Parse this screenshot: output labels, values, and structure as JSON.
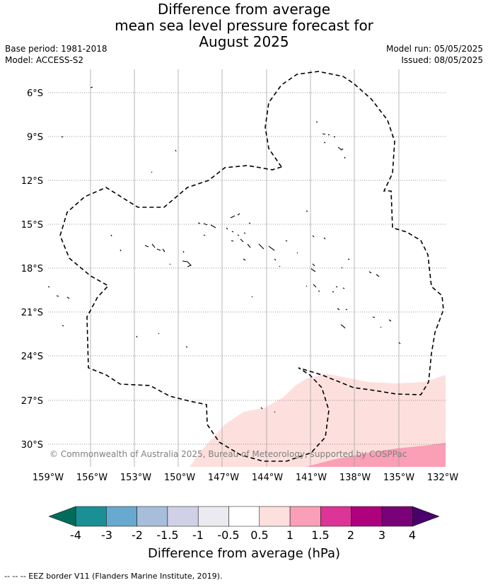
{
  "header": {
    "title_line1": "Difference from average",
    "title_line2": "mean sea level pressure forecast for",
    "title_line3": "August 2025",
    "base_period": "Base period: 1981-2018",
    "model": "Model: ACCESS-S2",
    "model_run": "Model run: 05/05/2025",
    "issued": "Issued: 08/05/2025"
  },
  "map": {
    "lat_labels": [
      "6°S",
      "9°S",
      "12°S",
      "15°S",
      "18°S",
      "21°S",
      "24°S",
      "27°S",
      "30°S"
    ],
    "lon_labels": [
      "159°W",
      "156°W",
      "153°W",
      "150°W",
      "147°W",
      "144°W",
      "141°W",
      "138°W",
      "135°W",
      "132°W"
    ],
    "copyright": "© Commonwealth of Australia 2025, Bureau of Meteorology, supported by COSPPac"
  },
  "colorbar": {
    "label": "Difference from average (hPa)",
    "ticks": [
      "-4",
      "-3",
      "-2",
      "-1.5",
      "-1",
      "-0.5",
      "0.5",
      "1",
      "1.5",
      "2",
      "3",
      "4"
    ],
    "colors": [
      "#1a9095",
      "#67a9cf",
      "#a6bddb",
      "#d0d1e6",
      "#ebeaf0",
      "#ffffff",
      "#fde0dd",
      "#fa9fb5",
      "#dd3497",
      "#ae017e",
      "#7a0177"
    ],
    "under_color": "#016c59",
    "over_color": "#49006a"
  },
  "footer": {
    "legend": "--  --  -- EEZ border V11 (Flanders Marine Institute, 2019)."
  }
}
